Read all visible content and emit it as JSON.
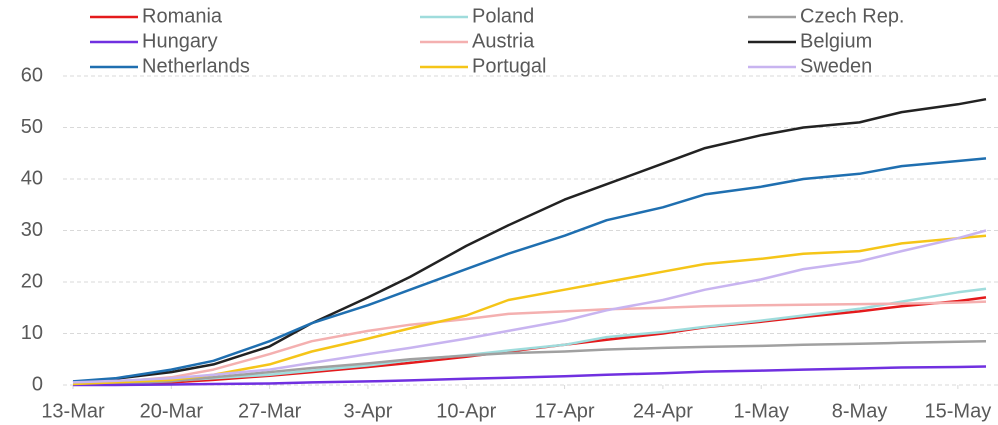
{
  "chart_data": {
    "type": "line",
    "x": [
      0,
      3,
      7,
      10,
      14,
      17,
      21,
      24,
      28,
      31,
      35,
      38,
      42,
      45,
      49,
      52,
      56,
      59,
      63,
      65
    ],
    "xlim": [
      0,
      66
    ],
    "xticks": [
      {
        "value": 0,
        "label": "13-Mar"
      },
      {
        "value": 7,
        "label": "20-Mar"
      },
      {
        "value": 14,
        "label": "27-Mar"
      },
      {
        "value": 21,
        "label": "3-Apr"
      },
      {
        "value": 28,
        "label": "10-Apr"
      },
      {
        "value": 35,
        "label": "17-Apr"
      },
      {
        "value": 42,
        "label": "24-Apr"
      },
      {
        "value": 49,
        "label": "1-May"
      },
      {
        "value": 56,
        "label": "8-May"
      },
      {
        "value": 63,
        "label": "15-May"
      }
    ],
    "ylim": [
      0,
      60
    ],
    "yticks": [
      0,
      10,
      20,
      30,
      40,
      50,
      60
    ],
    "grid": true,
    "legend": "top",
    "series": [
      {
        "name": "Romania",
        "color": "#e41a1c",
        "values": [
          0.1,
          0.2,
          0.5,
          1,
          1.8,
          2.5,
          3.5,
          4.3,
          5.5,
          6.5,
          7.8,
          8.8,
          10,
          11.2,
          12.3,
          13.2,
          14.3,
          15.3,
          16.3,
          17
        ]
      },
      {
        "name": "Poland",
        "color": "#9fdcdc",
        "values": [
          0.1,
          0.3,
          0.8,
          1.3,
          2,
          2.8,
          3.8,
          4.8,
          5.8,
          6.7,
          7.8,
          9.3,
          10.3,
          11.3,
          12.5,
          13.5,
          14.8,
          16.2,
          18,
          18.7
        ]
      },
      {
        "name": "Czech Rep.",
        "color": "#a0a0a0",
        "values": [
          0.1,
          0.3,
          0.7,
          1.5,
          2.5,
          3.3,
          4.2,
          5,
          5.7,
          6.2,
          6.5,
          6.9,
          7.2,
          7.4,
          7.6,
          7.8,
          8,
          8.2,
          8.4,
          8.5
        ]
      },
      {
        "name": "Hungary",
        "color": "#7030e0",
        "values": [
          0,
          0,
          0.1,
          0.2,
          0.3,
          0.5,
          0.7,
          0.9,
          1.2,
          1.4,
          1.7,
          2,
          2.3,
          2.6,
          2.8,
          3,
          3.2,
          3.4,
          3.5,
          3.6
        ]
      },
      {
        "name": "Austria",
        "color": "#f4b0b0",
        "values": [
          0.3,
          0.6,
          1.5,
          3,
          6,
          8.5,
          10.5,
          11.7,
          12.8,
          13.8,
          14.3,
          14.7,
          15,
          15.3,
          15.5,
          15.6,
          15.7,
          15.8,
          16,
          16.2
        ]
      },
      {
        "name": "Belgium",
        "color": "#222222",
        "values": [
          0.5,
          1.2,
          2.5,
          4,
          7.5,
          12,
          17,
          21,
          27,
          31,
          36,
          39,
          43,
          46,
          48.5,
          50,
          51,
          53,
          54.5,
          55.5
        ]
      },
      {
        "name": "Netherlands",
        "color": "#1f6fb0",
        "values": [
          0.7,
          1.3,
          3,
          4.7,
          8.5,
          12,
          15.5,
          18.5,
          22.5,
          25.5,
          29,
          32,
          34.5,
          37,
          38.5,
          40,
          41,
          42.5,
          43.5,
          44
        ]
      },
      {
        "name": "Portugal",
        "color": "#f5c518",
        "values": [
          0.2,
          0.5,
          1,
          2,
          4,
          6.5,
          9,
          11,
          13.5,
          16.5,
          18.5,
          20,
          22,
          23.5,
          24.5,
          25.5,
          26,
          27.5,
          28.5,
          29
        ]
      },
      {
        "name": "Sweden",
        "color": "#c8b4f0",
        "values": [
          0.5,
          0.8,
          1.3,
          2,
          3,
          4.3,
          6,
          7.2,
          9,
          10.5,
          12.5,
          14.5,
          16.5,
          18.5,
          20.5,
          22.5,
          24,
          26,
          28.5,
          30
        ]
      }
    ]
  }
}
